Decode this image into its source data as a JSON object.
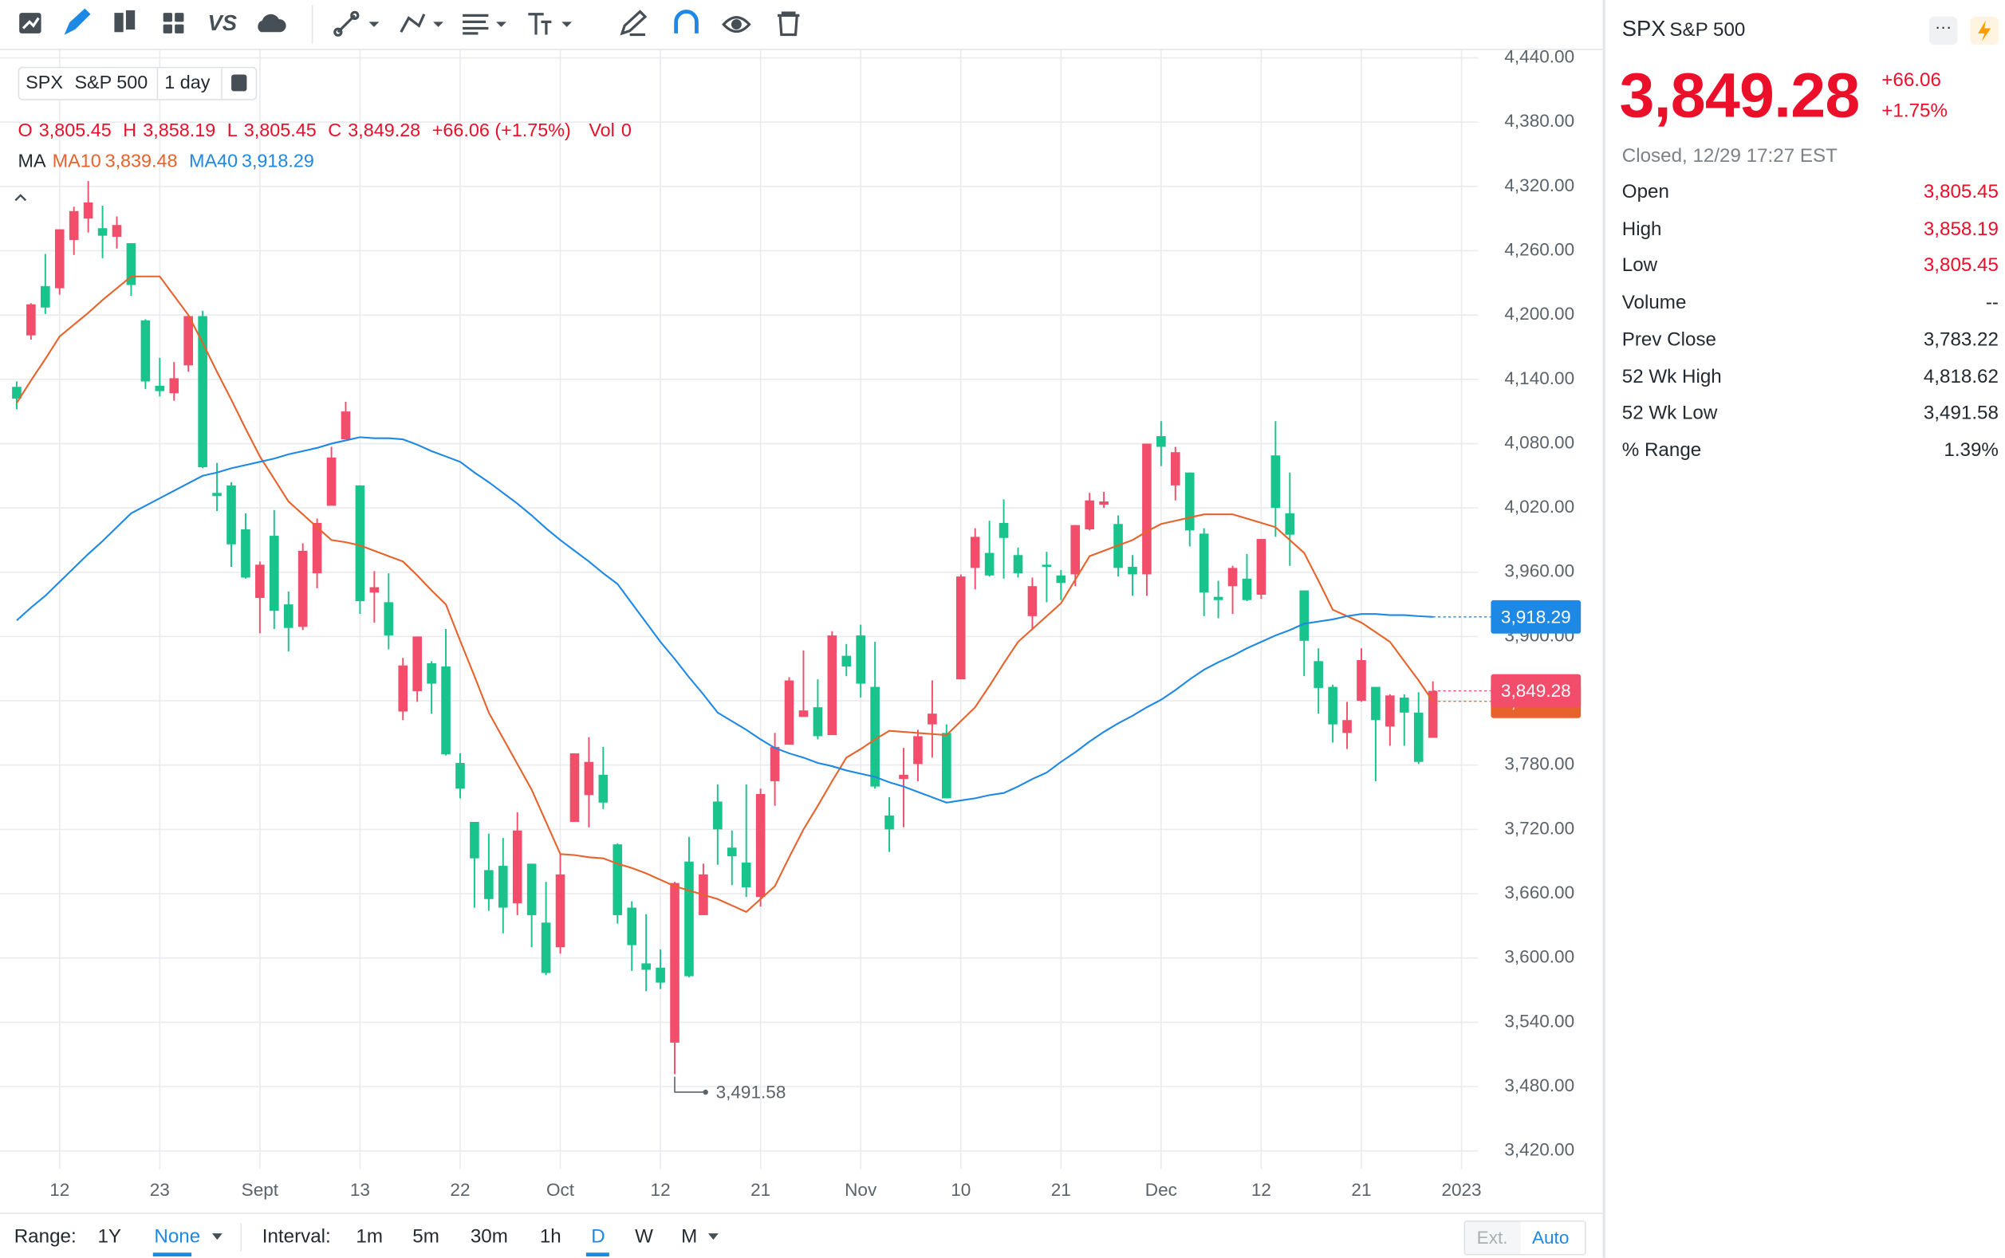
{
  "toolbar": {
    "compare": "VS"
  },
  "chart_data": {
    "type": "candlestick",
    "symbol": "SPX",
    "name": "S&P 500",
    "interval": "1 day",
    "legend": {
      "items": [
        {
          "label": "O",
          "value": "3,805.45"
        },
        {
          "label": "H",
          "value": "3,858.19"
        },
        {
          "label": "L",
          "value": "3,805.45"
        },
        {
          "label": "C",
          "value": "3,849.28"
        }
      ],
      "change": "+66.06 (+1.75%)",
      "volume_label": "Vol",
      "volume": "0",
      "ma_label": "MA"
    },
    "categories": [
      null,
      null,
      null,
      "12",
      null,
      null,
      null,
      null,
      null,
      null,
      "23",
      null,
      null,
      null,
      null,
      null,
      null,
      "Sept",
      null,
      null,
      null,
      null,
      null,
      null,
      "13",
      null,
      null,
      null,
      null,
      null,
      null,
      "22",
      null,
      null,
      null,
      null,
      null,
      null,
      "Oct",
      null,
      null,
      null,
      null,
      null,
      null,
      "12",
      null,
      null,
      null,
      null,
      null,
      null,
      "21",
      null,
      null,
      null,
      null,
      null,
      null,
      "Nov",
      null,
      null,
      null,
      null,
      null,
      null,
      "10",
      null,
      null,
      null,
      null,
      null,
      null,
      "21",
      null,
      null,
      null,
      null,
      null,
      null,
      "Dec",
      null,
      null,
      null,
      null,
      null,
      null,
      "12",
      null,
      null,
      null,
      null,
      null,
      null,
      "21",
      null,
      null,
      null,
      null,
      null,
      null,
      "2023"
    ],
    "open": [
      4133,
      4181,
      4227,
      4225,
      4270,
      4290,
      4281,
      4273,
      4267,
      4195,
      4134,
      4127,
      4153,
      4199,
      4034,
      4041,
      4000,
      3936,
      3994,
      3930,
      3909,
      3959,
      4022,
      4084,
      4041,
      3941,
      3932,
      3830,
      3849,
      3875,
      3872,
      3782,
      3727,
      3682,
      3686,
      3651,
      3688,
      3633,
      3610,
      3727,
      3752,
      3771,
      3706,
      3647,
      3595,
      3591,
      3521,
      3690,
      3640,
      3746,
      3703,
      3689,
      3657,
      3765,
      3799,
      3825,
      3834,
      3808,
      3882,
      3901,
      3853,
      3733,
      3767,
      3781,
      3818,
      3810,
      3860,
      3964,
      3978,
      4006,
      3976,
      3919,
      3967,
      3957,
      3958,
      4000,
      4023,
      4005,
      3965,
      3958,
      4087,
      4041,
      4053,
      3996,
      3937,
      3947,
      3954,
      3939,
      4069,
      4015,
      3943,
      3877,
      3853,
      3810,
      3840,
      3853,
      3816,
      3843,
      3829,
      3805.45,
      null,
      null
    ],
    "high": [
      4138,
      4211,
      4257,
      4280,
      4301,
      4325,
      4302,
      4292,
      4267,
      4196,
      4160,
      4156,
      4200,
      4204,
      4062,
      4044,
      4015,
      3970,
      4018,
      3942,
      3987,
      4010,
      4077,
      4119,
      4041,
      3961,
      3959,
      3880,
      3900,
      3877,
      3907,
      3791,
      3727,
      3716,
      3712,
      3736,
      3688,
      3671,
      3698,
      3791,
      3806,
      3797,
      3707,
      3653,
      3641,
      3608,
      3671,
      3713,
      3688,
      3762,
      3719,
      3762,
      3758,
      3810,
      3862,
      3887,
      3860,
      3905,
      3893,
      3911,
      3895,
      3750,
      3796,
      3813,
      3859,
      3818,
      3958,
      4001,
      4008,
      4028,
      3983,
      3955,
      3979,
      3962,
      4004,
      4034,
      4035,
      4013,
      3976,
      4080,
      4101,
      4077,
      4053,
      4001,
      3952,
      3966,
      3977,
      3991,
      4101,
      4053,
      3943,
      3889,
      3855,
      3839,
      3889,
      3853,
      3846,
      3846,
      3848,
      3858.19,
      null,
      null
    ],
    "low": [
      4112,
      4177,
      4201,
      4219,
      4256,
      4277,
      4253,
      4262,
      4218,
      4131,
      4124,
      4120,
      4147,
      4057,
      4017,
      3965,
      3954,
      3903,
      3907,
      3886,
      3906,
      3945,
      4022,
      4084,
      3921,
      3913,
      3888,
      3822,
      3839,
      3828,
      3789,
      3749,
      3647,
      3644,
      3623,
      3640,
      3610,
      3584,
      3604,
      3727,
      3722,
      3739,
      3632,
      3588,
      3569,
      3571,
      3491.58,
      3582,
      3640,
      3687,
      3668,
      3657,
      3648,
      3742,
      3799,
      3825,
      3804,
      3808,
      3863,
      3843,
      3758,
      3699,
      3722,
      3765,
      3787,
      3749,
      3860,
      3944,
      3956,
      3954,
      3955,
      3906,
      3932,
      3934,
      3947,
      3999,
      4020,
      3956,
      3938,
      3938,
      4059,
      4027,
      3984,
      3919,
      3917,
      3921,
      3933,
      3935,
      3993,
      3966,
      3863,
      3828,
      3801,
      3795,
      3839,
      3765,
      3798,
      3798,
      3781,
      3805.45,
      null,
      null
    ],
    "close": [
      4122,
      4210,
      4207,
      4280,
      4297,
      4305,
      4274,
      4284,
      4228,
      4138,
      4129,
      4141,
      4199,
      4058,
      4031,
      3986,
      3955,
      3967,
      3924,
      3908,
      3980,
      4006,
      4067,
      4110,
      3933,
      3946,
      3901,
      3873,
      3900,
      3856,
      3790,
      3758,
      3693,
      3655,
      3647,
      3719,
      3640,
      3586,
      3678,
      3791,
      3783,
      3745,
      3640,
      3612,
      3589,
      3577,
      3670,
      3583,
      3678,
      3720,
      3695,
      3666,
      3753,
      3797,
      3859,
      3831,
      3807,
      3901,
      3872,
      3856,
      3760,
      3720,
      3771,
      3807,
      3828,
      3749,
      3956,
      3993,
      3957,
      3992,
      3959,
      3947,
      3965,
      3950,
      4004,
      4027,
      4026,
      3964,
      3958,
      4080,
      4077,
      4072,
      3999,
      3941,
      3934,
      3964,
      3934,
      3991,
      4020,
      3995,
      3896,
      3852,
      3818,
      3822,
      3878,
      3822,
      3845,
      3829,
      3783,
      3849.28,
      null,
      null
    ],
    "up_color": "#f24e6b",
    "down_color": "#18c38c",
    "series": [
      {
        "name": "MA10",
        "color": "#e8622b",
        "last_value_label": "3,839.48",
        "values": [
          4118,
          4139,
          4159,
          4180,
          4191,
          4202,
          4214,
          4225,
          4236,
          4236,
          4236,
          4218,
          4200,
          4174,
          4147,
          4121,
          4094,
          4068,
          4047,
          4026,
          4014,
          4002,
          3990,
          3988,
          3985,
          3980,
          3975,
          3970,
          3957,
          3943,
          3930,
          3896,
          3863,
          3829,
          3805,
          3781,
          3757,
          3727,
          3697,
          3696,
          3694,
          3693,
          3688,
          3684,
          3679,
          3673,
          3667,
          3663,
          3659,
          3655,
          3649,
          3643,
          3655,
          3667,
          3694,
          3720,
          3742,
          3765,
          3787,
          3795,
          3804,
          3812,
          3811,
          3810,
          3809,
          3808,
          3821,
          3834,
          3854,
          3875,
          3895,
          3907,
          3919,
          3931,
          3953,
          3975,
          3980,
          3985,
          3990,
          3998,
          4005,
          4008,
          4011,
          4014,
          4014,
          4014,
          4010,
          4006,
          4002,
          3990,
          3978,
          3952,
          3925,
          3919,
          3913,
          3904,
          3895,
          3877,
          3859,
          3839.48,
          null,
          null
        ]
      },
      {
        "name": "MA40",
        "color": "#1e88e5",
        "last_value_label": "3,918.29",
        "values": [
          3915,
          3927,
          3938,
          3951,
          3964,
          3977,
          3989,
          4002,
          4015,
          4022,
          4029,
          4036,
          4043,
          4050,
          4053,
          4057,
          4060,
          4063,
          4066,
          4070,
          4073,
          4076,
          4080,
          4083,
          4086,
          4085,
          4085,
          4084,
          4079,
          4073,
          4068,
          4063,
          4053,
          4044,
          4034,
          4024,
          4013,
          4001,
          3990,
          3980,
          3970,
          3959,
          3949,
          3931,
          3913,
          3895,
          3879,
          3862,
          3846,
          3829,
          3821,
          3813,
          3804,
          3796,
          3791,
          3787,
          3782,
          3779,
          3775,
          3772,
          3769,
          3764,
          3760,
          3755,
          3750,
          3745,
          3747,
          3749,
          3752,
          3754,
          3760,
          3767,
          3773,
          3783,
          3792,
          3802,
          3811,
          3819,
          3826,
          3834,
          3841,
          3850,
          3860,
          3869,
          3876,
          3882,
          3889,
          3895,
          3901,
          3906,
          3912,
          3914,
          3916,
          3919,
          3921,
          3921,
          3920,
          3920,
          3919,
          3918.29,
          null,
          null
        ]
      }
    ],
    "last_price_label": "3,849.28",
    "low_annotation": "3,491.58",
    "ylim": [
      3403,
      4446
    ],
    "yticks": [
      {
        "value": 3420,
        "label": "3,420.00"
      },
      {
        "value": 3480,
        "label": "3,480.00"
      },
      {
        "value": 3540,
        "label": "3,540.00"
      },
      {
        "value": 3600,
        "label": "3,600.00"
      },
      {
        "value": 3660,
        "label": "3,660.00"
      },
      {
        "value": 3720,
        "label": "3,720.00"
      },
      {
        "value": 3780,
        "label": "3,780.00"
      },
      {
        "value": 3840,
        "label": "3,840.00"
      },
      {
        "value": 3900,
        "label": "3,900.00"
      },
      {
        "value": 3960,
        "label": "3,960.00"
      },
      {
        "value": 4020,
        "label": "4,020.00"
      },
      {
        "value": 4080,
        "label": "4,080.00"
      },
      {
        "value": 4140,
        "label": "4,140.00"
      },
      {
        "value": 4200,
        "label": "4,200.00"
      },
      {
        "value": 4260,
        "label": "4,260.00"
      },
      {
        "value": 4320,
        "label": "4,320.00"
      },
      {
        "value": 4380,
        "label": "4,380.00"
      },
      {
        "value": 4440,
        "label": "4,440.00"
      }
    ],
    "grid": true,
    "grid_color": "#e9ebee"
  },
  "footer": {
    "range_label": "Range:",
    "ranges": [
      "1Y",
      "None"
    ],
    "interval_label": "Interval:",
    "intervals": [
      "1m",
      "5m",
      "30m",
      "1h",
      "D",
      "W",
      "M"
    ],
    "ext": "Ext.",
    "auto": "Auto"
  },
  "quote": {
    "symbol": "SPX",
    "name": "S&P 500",
    "price": "3,849.28",
    "change": "+66.06",
    "change_pct": "+1.75%",
    "status": "Closed, 12/29 17:27 EST",
    "stats": [
      {
        "label": "Open",
        "value": "3,805.45",
        "color": "#eb0f29"
      },
      {
        "label": "High",
        "value": "3,858.19",
        "color": "#eb0f29"
      },
      {
        "label": "Low",
        "value": "3,805.45",
        "color": "#eb0f29"
      },
      {
        "label": "Volume",
        "value": "--",
        "color": "#232a31"
      },
      {
        "label": "Prev Close",
        "value": "3,783.22",
        "color": "#232a31"
      },
      {
        "label": "52 Wk High",
        "value": "4,818.62",
        "color": "#232a31"
      },
      {
        "label": "52 Wk Low",
        "value": "3,491.58",
        "color": "#232a31"
      },
      {
        "label": "% Range",
        "value": "1.39%",
        "color": "#232a31"
      }
    ]
  }
}
